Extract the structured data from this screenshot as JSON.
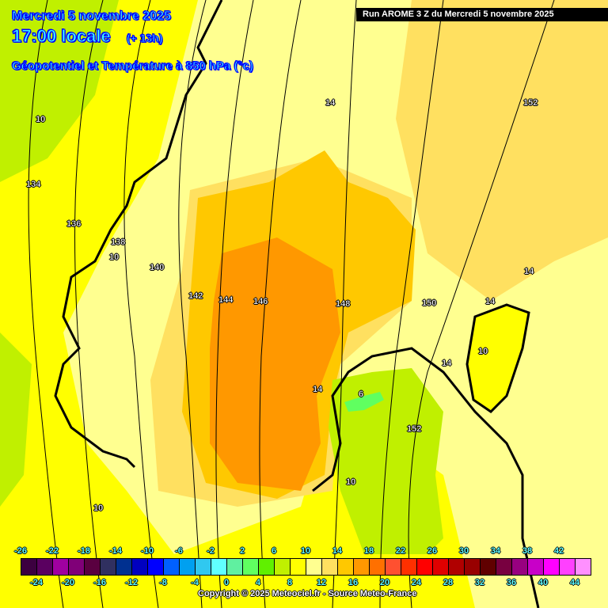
{
  "header": {
    "date": "Mercredi 5 novembre 2025",
    "time": "17:00 locale",
    "lead": "(+ 13h)",
    "parameter": "Géopotentiel et Température à 850 hPa (°c)",
    "run": "Run AROME 3 Z du Mercredi 5 novembre 2025"
  },
  "contour_labels": {
    "geopotential": [
      "134",
      "136",
      "138",
      "140",
      "142",
      "144",
      "146",
      "148",
      "150",
      "152",
      "152"
    ],
    "temperature": [
      "10",
      "10",
      "14",
      "14",
      "14",
      "14",
      "14",
      "10",
      "6",
      "10",
      "14",
      "10"
    ]
  },
  "legend": {
    "colors": [
      "#3c0040",
      "#5a0060",
      "#a000a0",
      "#800078",
      "#5a0040",
      "#303060",
      "#003090",
      "#0000c0",
      "#0000ff",
      "#0060ff",
      "#00a0f0",
      "#30c8f0",
      "#60ffff",
      "#60f0a0",
      "#60ff60",
      "#60f000",
      "#c0f000",
      "#ffff00",
      "#ffff90",
      "#ffe060",
      "#ffc800",
      "#ff9800",
      "#ff7000",
      "#ff5030",
      "#ff3000",
      "#ff0000",
      "#e00000",
      "#b00000",
      "#980000",
      "#600000",
      "#780040",
      "#980080",
      "#c800c8",
      "#ff00ff",
      "#ff40ff",
      "#ff90ff"
    ],
    "top_labels": [
      "-26",
      "-22",
      "-18",
      "-14",
      "-10",
      "-6",
      "-2",
      "2",
      "6",
      "10",
      "14",
      "18",
      "22",
      "26",
      "30",
      "34",
      "38",
      "42"
    ],
    "bottom_labels": [
      "-24",
      "-20",
      "-16",
      "-12",
      "-8",
      "-4",
      "0",
      "4",
      "8",
      "12",
      "16",
      "20",
      "24",
      "28",
      "32",
      "36",
      "40",
      "44"
    ]
  },
  "copyright": "Copyright © 2025 Meteociel.fr - Source Meteo-France"
}
